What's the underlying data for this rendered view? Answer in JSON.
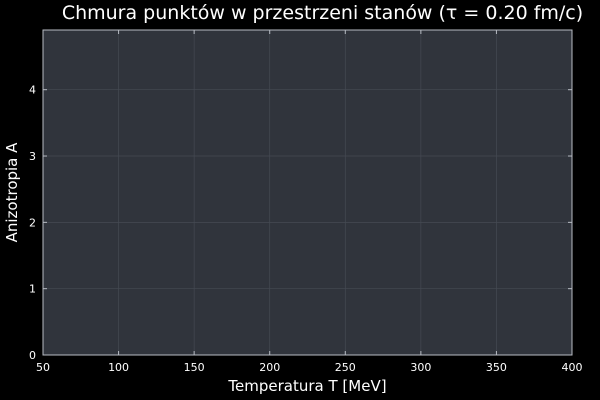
{
  "colors": {
    "background": "#000000",
    "plot_background": "#30343c",
    "grid": "#454a53",
    "axis": "#b8bcc4",
    "text": "#ffffff"
  },
  "chart_data": {
    "type": "scatter",
    "title": "Chmura punktów w przestrzeni stanów (τ = 0.20 fm/c)",
    "xlabel": "Temperatura T [MeV]",
    "ylabel": "Anizotropia A",
    "xlim": [
      50,
      400
    ],
    "ylim": [
      0,
      4.9
    ],
    "xticks": [
      50,
      100,
      150,
      200,
      250,
      300,
      350,
      400
    ],
    "yticks": [
      0,
      1,
      2,
      3,
      4
    ],
    "grid": true,
    "legend": "none",
    "series": [
      {
        "x": [],
        "y": []
      }
    ]
  }
}
